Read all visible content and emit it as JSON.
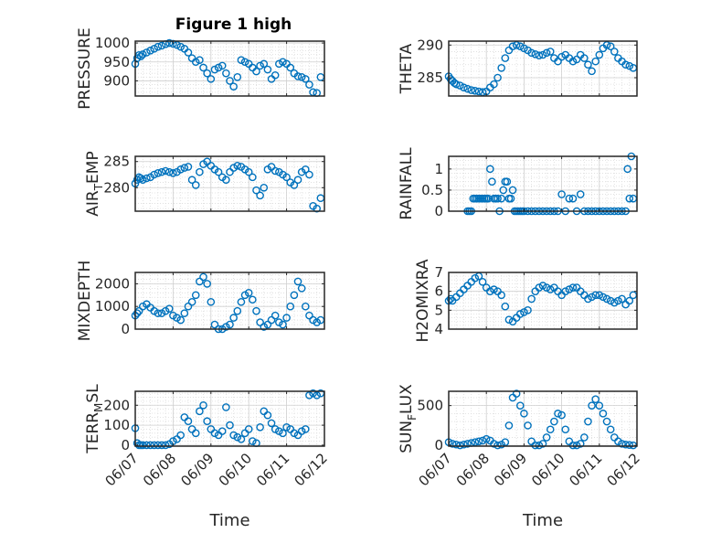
{
  "chart_data": [
    {
      "type": "scatter",
      "title": "Figure 1 high",
      "xlabel": "",
      "ylabel": "PRESSURE",
      "ylim": [
        860,
        1005
      ],
      "yticks": [
        900,
        950,
        1000
      ],
      "ytick_labels": [
        "900",
        "950",
        "1000"
      ],
      "xlim": [
        0,
        5
      ],
      "xticks": [
        0,
        1,
        2,
        3,
        4,
        5
      ],
      "xtick_labels": [],
      "x": [
        0.0,
        0.05,
        0.1,
        0.15,
        0.2,
        0.3,
        0.4,
        0.5,
        0.6,
        0.7,
        0.8,
        0.9,
        1.0,
        1.1,
        1.2,
        1.3,
        1.4,
        1.5,
        1.6,
        1.7,
        1.8,
        1.9,
        2.0,
        2.1,
        2.2,
        2.3,
        2.4,
        2.5,
        2.6,
        2.7,
        2.8,
        2.9,
        3.0,
        3.1,
        3.2,
        3.3,
        3.4,
        3.5,
        3.6,
        3.7,
        3.8,
        3.9,
        4.0,
        4.1,
        4.2,
        4.3,
        4.4,
        4.5,
        4.6,
        4.7,
        4.8,
        4.9
      ],
      "y": [
        945,
        960,
        968,
        965,
        970,
        975,
        980,
        985,
        990,
        993,
        997,
        1000,
        998,
        995,
        990,
        985,
        975,
        960,
        950,
        955,
        935,
        920,
        905,
        930,
        935,
        940,
        920,
        900,
        885,
        910,
        955,
        950,
        945,
        935,
        925,
        940,
        945,
        930,
        905,
        915,
        945,
        950,
        945,
        935,
        920,
        912,
        910,
        905,
        890,
        870,
        868,
        910
      ]
    },
    {
      "type": "scatter",
      "title": "",
      "xlabel": "",
      "ylabel": "THETA",
      "ylim": [
        282.2,
        290.6
      ],
      "yticks": [
        285,
        290
      ],
      "ytick_labels": [
        "285",
        "290"
      ],
      "xlim": [
        0,
        5
      ],
      "xticks": [
        0,
        1,
        2,
        3,
        4,
        5
      ],
      "xtick_labels": [],
      "x": [
        0.0,
        0.05,
        0.1,
        0.15,
        0.2,
        0.3,
        0.4,
        0.5,
        0.6,
        0.7,
        0.8,
        0.9,
        1.0,
        1.1,
        1.2,
        1.3,
        1.4,
        1.5,
        1.6,
        1.7,
        1.8,
        1.9,
        2.0,
        2.1,
        2.2,
        2.3,
        2.4,
        2.5,
        2.6,
        2.7,
        2.8,
        2.9,
        3.0,
        3.1,
        3.2,
        3.3,
        3.4,
        3.5,
        3.6,
        3.7,
        3.8,
        3.9,
        4.0,
        4.1,
        4.2,
        4.3,
        4.4,
        4.5,
        4.6,
        4.7,
        4.8,
        4.9
      ],
      "y": [
        285.2,
        284.8,
        284.5,
        284.2,
        284.0,
        283.8,
        283.5,
        283.3,
        283.1,
        283.0,
        282.9,
        282.8,
        282.9,
        283.5,
        284.0,
        285.0,
        286.5,
        288.0,
        289.2,
        289.8,
        290.0,
        289.8,
        289.5,
        289.2,
        288.8,
        288.6,
        288.4,
        288.5,
        288.8,
        289.0,
        288.0,
        287.5,
        288.2,
        288.5,
        288.0,
        287.5,
        287.8,
        288.5,
        288.0,
        287.0,
        286.0,
        287.5,
        288.5,
        289.5,
        290.0,
        289.8,
        289.0,
        288.0,
        287.5,
        287.0,
        286.8,
        286.5
      ]
    },
    {
      "type": "scatter",
      "title": "",
      "xlabel": "",
      "ylabel": "AIR_TEMP",
      "ylim": [
        275.5,
        286
      ],
      "yticks": [
        280,
        285
      ],
      "ytick_labels": [
        "280",
        "285"
      ],
      "xlim": [
        0,
        5
      ],
      "xticks": [
        0,
        1,
        2,
        3,
        4,
        5
      ],
      "xtick_labels": [],
      "x": [
        0.0,
        0.05,
        0.1,
        0.15,
        0.2,
        0.3,
        0.4,
        0.5,
        0.6,
        0.7,
        0.8,
        0.9,
        1.0,
        1.1,
        1.2,
        1.3,
        1.4,
        1.5,
        1.6,
        1.7,
        1.8,
        1.9,
        2.0,
        2.1,
        2.2,
        2.3,
        2.4,
        2.5,
        2.6,
        2.7,
        2.8,
        2.9,
        3.0,
        3.1,
        3.2,
        3.3,
        3.4,
        3.5,
        3.6,
        3.7,
        3.8,
        3.9,
        4.0,
        4.1,
        4.2,
        4.3,
        4.4,
        4.5,
        4.6,
        4.7,
        4.8,
        4.9
      ],
      "y": [
        280.8,
        281.5,
        282.0,
        281.8,
        281.5,
        281.8,
        282.0,
        282.5,
        282.8,
        283.0,
        283.2,
        283.0,
        282.8,
        283.0,
        283.5,
        283.8,
        284.0,
        281.5,
        280.5,
        283.0,
        284.5,
        285.0,
        284.2,
        283.5,
        283.0,
        282.0,
        281.5,
        283.0,
        283.8,
        284.2,
        284.0,
        283.5,
        283.0,
        282.0,
        279.5,
        278.5,
        280.0,
        283.5,
        284.0,
        283.2,
        283.0,
        282.5,
        282.0,
        281.0,
        280.5,
        281.5,
        283.0,
        283.5,
        282.5,
        276.5,
        276.0,
        278.0
      ]
    },
    {
      "type": "scatter",
      "title": "",
      "xlabel": "",
      "ylabel": "RAINFALL",
      "ylim": [
        0,
        1.3
      ],
      "yticks": [
        0,
        0.5,
        1
      ],
      "ytick_labels": [
        "0",
        "0.5",
        "1"
      ],
      "xlim": [
        0,
        5
      ],
      "xticks": [
        0,
        1,
        2,
        3,
        4,
        5
      ],
      "xtick_labels": [],
      "x": [
        0.5,
        0.55,
        0.6,
        0.65,
        0.7,
        0.75,
        0.8,
        0.85,
        0.9,
        0.95,
        1.0,
        1.05,
        1.1,
        1.15,
        1.2,
        1.25,
        1.3,
        1.35,
        1.4,
        1.45,
        1.5,
        1.55,
        1.6,
        1.65,
        1.7,
        1.75,
        1.8,
        1.85,
        1.9,
        1.95,
        2.0,
        2.1,
        2.2,
        2.3,
        2.4,
        2.5,
        2.6,
        2.7,
        2.8,
        2.9,
        3.0,
        3.1,
        3.2,
        3.3,
        3.4,
        3.5,
        3.6,
        3.7,
        3.8,
        3.9,
        4.0,
        4.1,
        4.2,
        4.3,
        4.4,
        4.5,
        4.6,
        4.7,
        4.75,
        4.8,
        4.85,
        4.9
      ],
      "y": [
        0,
        0,
        0,
        0.3,
        0.3,
        0.3,
        0.3,
        0.3,
        0.3,
        0.3,
        0.3,
        0.3,
        1.0,
        0.7,
        0.3,
        0.3,
        0.3,
        0,
        0.3,
        0.5,
        0.7,
        0.7,
        0.3,
        0.3,
        0.5,
        0,
        0,
        0,
        0,
        0,
        0,
        0,
        0,
        0,
        0,
        0,
        0,
        0,
        0,
        0,
        0.4,
        0,
        0.3,
        0.3,
        0,
        0.4,
        0,
        0,
        0,
        0,
        0,
        0,
        0,
        0,
        0,
        0,
        0,
        0,
        1.0,
        0.3,
        1.3,
        0.3
      ]
    },
    {
      "type": "scatter",
      "title": "",
      "xlabel": "",
      "ylabel": "MIXDEPTH",
      "ylim": [
        0,
        2500
      ],
      "yticks": [
        0,
        1000,
        2000
      ],
      "ytick_labels": [
        "0",
        "1000",
        "2000"
      ],
      "xlim": [
        0,
        5
      ],
      "xticks": [
        0,
        1,
        2,
        3,
        4,
        5
      ],
      "xtick_labels": [],
      "x": [
        0.0,
        0.05,
        0.1,
        0.2,
        0.3,
        0.4,
        0.5,
        0.6,
        0.7,
        0.8,
        0.9,
        1.0,
        1.1,
        1.2,
        1.3,
        1.4,
        1.5,
        1.6,
        1.7,
        1.8,
        1.9,
        2.0,
        2.1,
        2.2,
        2.3,
        2.4,
        2.5,
        2.6,
        2.7,
        2.8,
        2.9,
        3.0,
        3.1,
        3.2,
        3.3,
        3.4,
        3.5,
        3.6,
        3.7,
        3.8,
        3.9,
        4.0,
        4.1,
        4.2,
        4.3,
        4.4,
        4.5,
        4.6,
        4.7,
        4.8,
        4.9
      ],
      "y": [
        600,
        700,
        800,
        1000,
        1100,
        950,
        800,
        700,
        700,
        800,
        900,
        600,
        500,
        400,
        700,
        1000,
        1200,
        1500,
        2100,
        2300,
        2000,
        1200,
        200,
        0,
        0,
        100,
        200,
        500,
        800,
        1200,
        1500,
        1600,
        1300,
        800,
        300,
        100,
        200,
        400,
        600,
        300,
        200,
        500,
        1000,
        1500,
        2100,
        1800,
        1000,
        600,
        400,
        300,
        400
      ]
    },
    {
      "type": "scatter",
      "title": "",
      "xlabel": "",
      "ylabel": "H2OMIXRA",
      "ylim": [
        4,
        7
      ],
      "yticks": [
        4,
        5,
        6,
        7
      ],
      "ytick_labels": [
        "4",
        "5",
        "6",
        "7"
      ],
      "xlim": [
        0,
        5
      ],
      "xticks": [
        0,
        1,
        2,
        3,
        4,
        5
      ],
      "xtick_labels": [],
      "x": [
        0.0,
        0.05,
        0.1,
        0.2,
        0.3,
        0.4,
        0.5,
        0.6,
        0.7,
        0.8,
        0.9,
        1.0,
        1.1,
        1.2,
        1.3,
        1.4,
        1.5,
        1.6,
        1.7,
        1.8,
        1.9,
        2.0,
        2.1,
        2.2,
        2.3,
        2.4,
        2.5,
        2.6,
        2.7,
        2.8,
        2.9,
        3.0,
        3.1,
        3.2,
        3.3,
        3.4,
        3.5,
        3.6,
        3.7,
        3.8,
        3.9,
        4.0,
        4.1,
        4.2,
        4.3,
        4.4,
        4.5,
        4.6,
        4.7,
        4.8,
        4.9
      ],
      "y": [
        5.5,
        5.6,
        5.5,
        5.7,
        5.9,
        6.1,
        6.3,
        6.5,
        6.7,
        6.8,
        6.5,
        6.2,
        6.0,
        6.1,
        6.0,
        5.8,
        5.2,
        4.5,
        4.4,
        4.6,
        4.8,
        4.9,
        5.0,
        5.6,
        6.0,
        6.2,
        6.3,
        6.2,
        6.1,
        6.2,
        6.0,
        5.8,
        6.0,
        6.1,
        6.2,
        6.2,
        6.0,
        5.8,
        5.6,
        5.7,
        5.8,
        5.8,
        5.7,
        5.6,
        5.5,
        5.4,
        5.5,
        5.6,
        5.3,
        5.5,
        5.8
      ]
    },
    {
      "type": "scatter",
      "title": "",
      "xlabel": "Time",
      "ylabel": "TERR_MSL",
      "ylim": [
        -5,
        270
      ],
      "yticks": [
        0,
        100,
        200
      ],
      "ytick_labels": [
        "0",
        "100",
        "200"
      ],
      "xlim": [
        0,
        5
      ],
      "xticks": [
        0,
        1,
        2,
        3,
        4,
        5
      ],
      "xtick_labels": [
        "06/07",
        "06/08",
        "06/09",
        "06/10",
        "06/11",
        "06/12"
      ],
      "x": [
        0.0,
        0.05,
        0.1,
        0.15,
        0.2,
        0.3,
        0.4,
        0.5,
        0.6,
        0.7,
        0.8,
        0.9,
        1.0,
        1.1,
        1.2,
        1.3,
        1.4,
        1.5,
        1.6,
        1.7,
        1.8,
        1.9,
        2.0,
        2.1,
        2.2,
        2.3,
        2.4,
        2.5,
        2.6,
        2.7,
        2.8,
        2.9,
        3.0,
        3.1,
        3.2,
        3.3,
        3.4,
        3.5,
        3.6,
        3.7,
        3.8,
        3.9,
        4.0,
        4.1,
        4.2,
        4.3,
        4.4,
        4.5,
        4.6,
        4.7,
        4.8,
        4.9
      ],
      "y": [
        85,
        10,
        0,
        0,
        0,
        0,
        0,
        0,
        0,
        0,
        0,
        5,
        20,
        30,
        50,
        140,
        120,
        80,
        60,
        170,
        200,
        120,
        80,
        60,
        50,
        70,
        190,
        100,
        50,
        40,
        30,
        60,
        80,
        20,
        10,
        90,
        170,
        150,
        110,
        80,
        70,
        60,
        90,
        80,
        60,
        50,
        70,
        80,
        250,
        260,
        250,
        260
      ]
    },
    {
      "type": "scatter",
      "title": "",
      "xlabel": "Time",
      "ylabel": "SUN_FLUX",
      "ylim": [
        -10,
        680
      ],
      "yticks": [
        0,
        500
      ],
      "ytick_labels": [
        "0",
        "500"
      ],
      "xlim": [
        0,
        5
      ],
      "xticks": [
        0,
        1,
        2,
        3,
        4,
        5
      ],
      "xtick_labels": [
        "06/07",
        "06/08",
        "06/09",
        "06/10",
        "06/11",
        "06/12"
      ],
      "x": [
        0.0,
        0.1,
        0.2,
        0.3,
        0.4,
        0.5,
        0.6,
        0.7,
        0.8,
        0.9,
        1.0,
        1.1,
        1.2,
        1.3,
        1.4,
        1.5,
        1.6,
        1.7,
        1.8,
        1.9,
        2.0,
        2.1,
        2.2,
        2.3,
        2.4,
        2.5,
        2.6,
        2.7,
        2.8,
        2.9,
        3.0,
        3.1,
        3.2,
        3.3,
        3.4,
        3.5,
        3.6,
        3.7,
        3.8,
        3.9,
        4.0,
        4.1,
        4.2,
        4.3,
        4.4,
        4.5,
        4.6,
        4.7,
        4.8,
        4.9
      ],
      "y": [
        40,
        20,
        10,
        0,
        10,
        20,
        30,
        40,
        50,
        60,
        80,
        60,
        20,
        0,
        10,
        40,
        250,
        600,
        650,
        500,
        400,
        250,
        50,
        0,
        0,
        20,
        100,
        200,
        300,
        400,
        380,
        200,
        50,
        0,
        0,
        20,
        100,
        300,
        500,
        580,
        500,
        400,
        300,
        200,
        100,
        50,
        20,
        10,
        5,
        0
      ]
    }
  ],
  "figure": {
    "marker_color": "#0072bd"
  }
}
